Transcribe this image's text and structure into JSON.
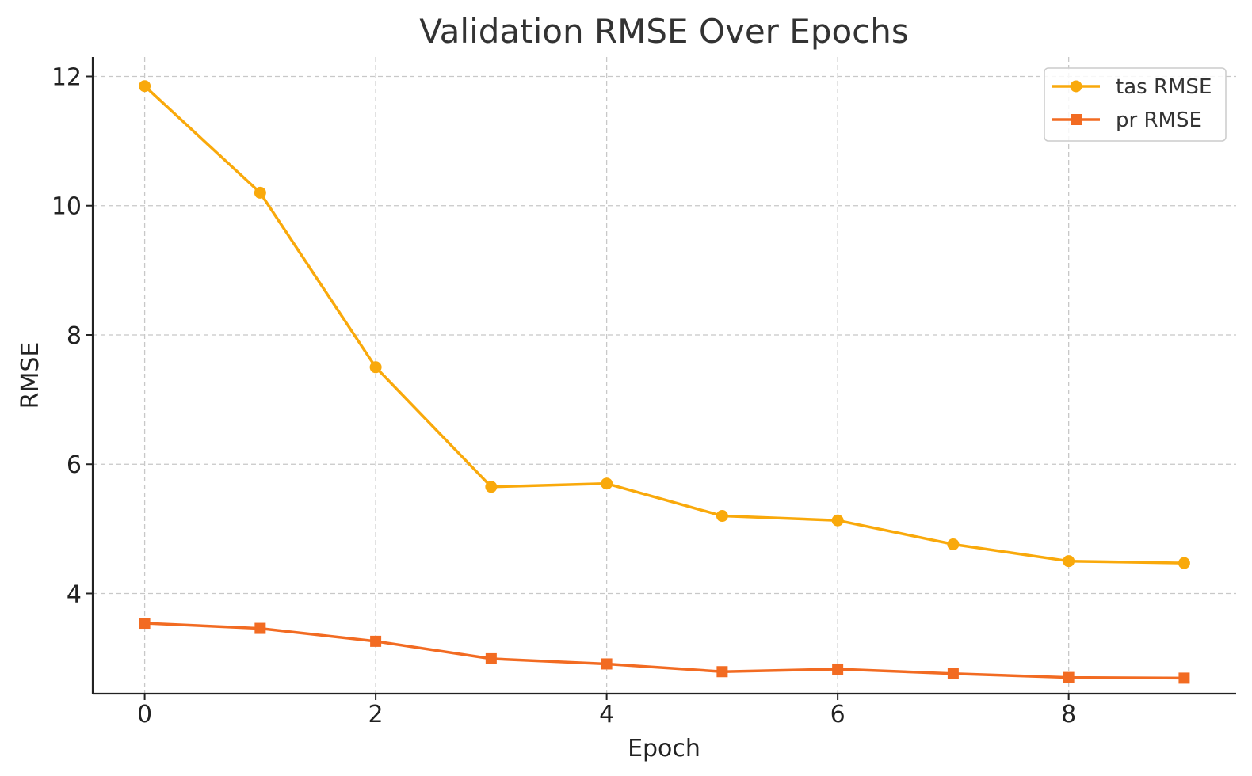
{
  "chart_data": {
    "type": "line",
    "title": "Validation RMSE Over Epochs",
    "xlabel": "Epoch",
    "ylabel": "RMSE",
    "xlim": [
      -0.45,
      9.45
    ],
    "ylim": [
      2.45,
      12.3
    ],
    "x": [
      0,
      1,
      2,
      3,
      4,
      5,
      6,
      7,
      8,
      9
    ],
    "xticks": [
      "0",
      "2",
      "4",
      "6",
      "8"
    ],
    "yticks": [
      "4",
      "6",
      "8",
      "10",
      "12"
    ],
    "grid": true,
    "legend_position": "top-right",
    "series": [
      {
        "name": "tas RMSE",
        "marker": "circle",
        "color": "#F9A90B",
        "values": [
          11.85,
          10.2,
          7.5,
          5.65,
          5.7,
          5.2,
          5.13,
          4.76,
          4.5,
          4.47
        ]
      },
      {
        "name": "pr RMSE",
        "marker": "square",
        "color": "#F26B22",
        "values": [
          3.54,
          3.46,
          3.26,
          2.99,
          2.91,
          2.79,
          2.83,
          2.76,
          2.7,
          2.69
        ]
      }
    ]
  }
}
